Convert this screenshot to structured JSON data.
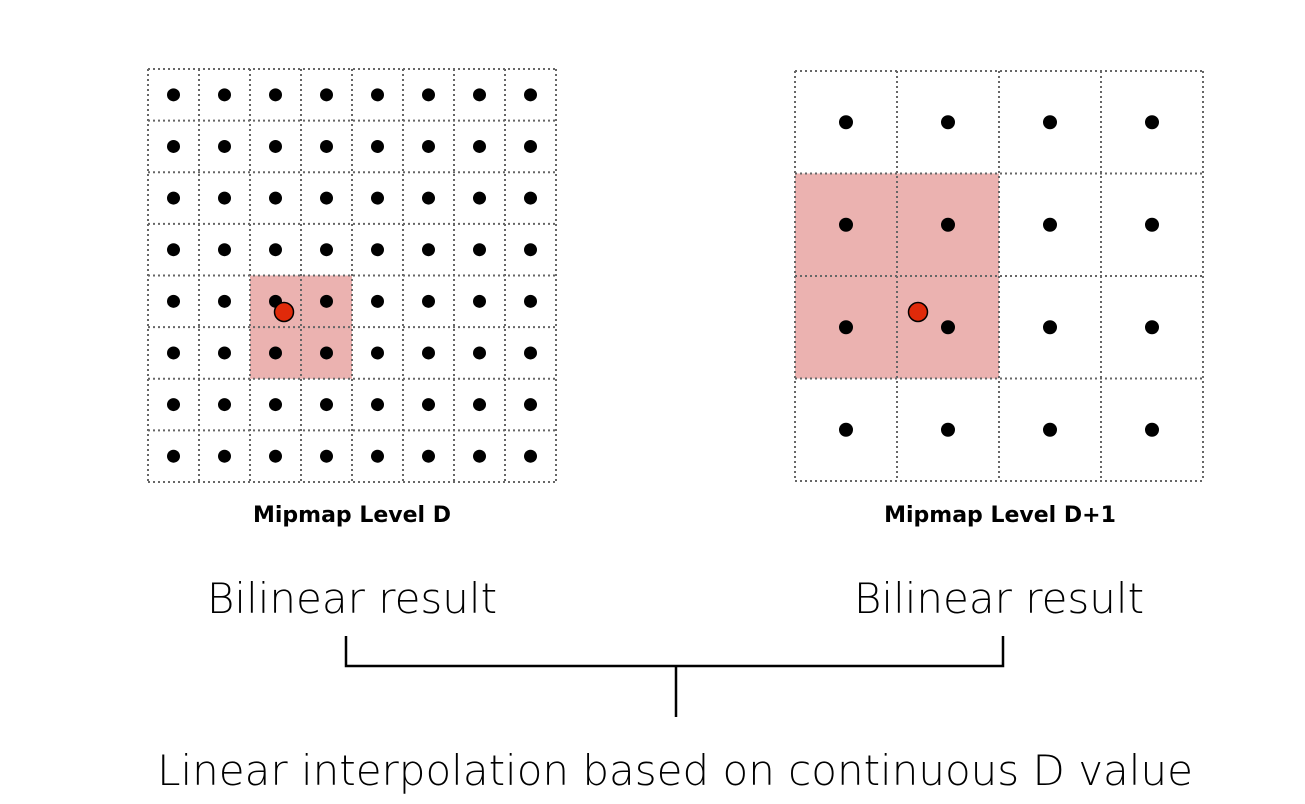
{
  "left_grid": {
    "label": "Mipmap Level D",
    "rows": 8,
    "cols": 8
  },
  "right_grid": {
    "label": "Mipmap Level D+1",
    "rows": 4,
    "cols": 4
  },
  "left_result": "Bilinear result",
  "right_result": "Bilinear result",
  "bottom_label": "Linear interpolation based on continuous D value",
  "colors": {
    "highlight": "#ebb2b0",
    "sample_point": "#e02a0a",
    "texel": "#000000",
    "grid": "#666666"
  }
}
